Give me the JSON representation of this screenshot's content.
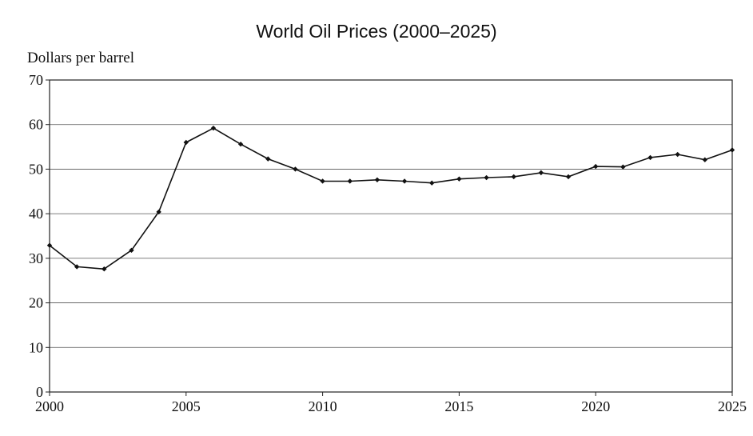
{
  "chart_data": {
    "type": "line",
    "title": "World Oil Prices (2000–2025)",
    "ylabel": "Dollars per barrel",
    "xlabel": "",
    "xlim": [
      2000,
      2025
    ],
    "ylim": [
      0,
      70
    ],
    "x_ticks": [
      2000,
      2005,
      2010,
      2015,
      2020,
      2025
    ],
    "y_ticks": [
      0,
      10,
      20,
      30,
      40,
      50,
      60,
      70
    ],
    "grid": "horizontal",
    "series": [
      {
        "color": "#111111",
        "points": [
          {
            "x": 2000,
            "y": 32.9
          },
          {
            "x": 2001,
            "y": 28.1
          },
          {
            "x": 2002,
            "y": 27.6
          },
          {
            "x": 2003,
            "y": 31.8
          },
          {
            "x": 2004,
            "y": 40.4
          },
          {
            "x": 2005,
            "y": 56.0
          },
          {
            "x": 2006,
            "y": 59.2
          },
          {
            "x": 2007,
            "y": 55.6
          },
          {
            "x": 2008,
            "y": 52.3
          },
          {
            "x": 2009,
            "y": 50.0
          },
          {
            "x": 2010,
            "y": 47.3
          },
          {
            "x": 2011,
            "y": 47.3
          },
          {
            "x": 2012,
            "y": 47.6
          },
          {
            "x": 2013,
            "y": 47.3
          },
          {
            "x": 2014,
            "y": 46.9
          },
          {
            "x": 2015,
            "y": 47.8
          },
          {
            "x": 2016,
            "y": 48.1
          },
          {
            "x": 2017,
            "y": 48.3
          },
          {
            "x": 2018,
            "y": 49.2
          },
          {
            "x": 2019,
            "y": 48.3
          },
          {
            "x": 2020,
            "y": 50.6
          },
          {
            "x": 2021,
            "y": 50.5
          },
          {
            "x": 2022,
            "y": 52.6
          },
          {
            "x": 2023,
            "y": 53.3
          },
          {
            "x": 2024,
            "y": 52.1
          },
          {
            "x": 2025,
            "y": 54.3
          }
        ]
      }
    ]
  }
}
